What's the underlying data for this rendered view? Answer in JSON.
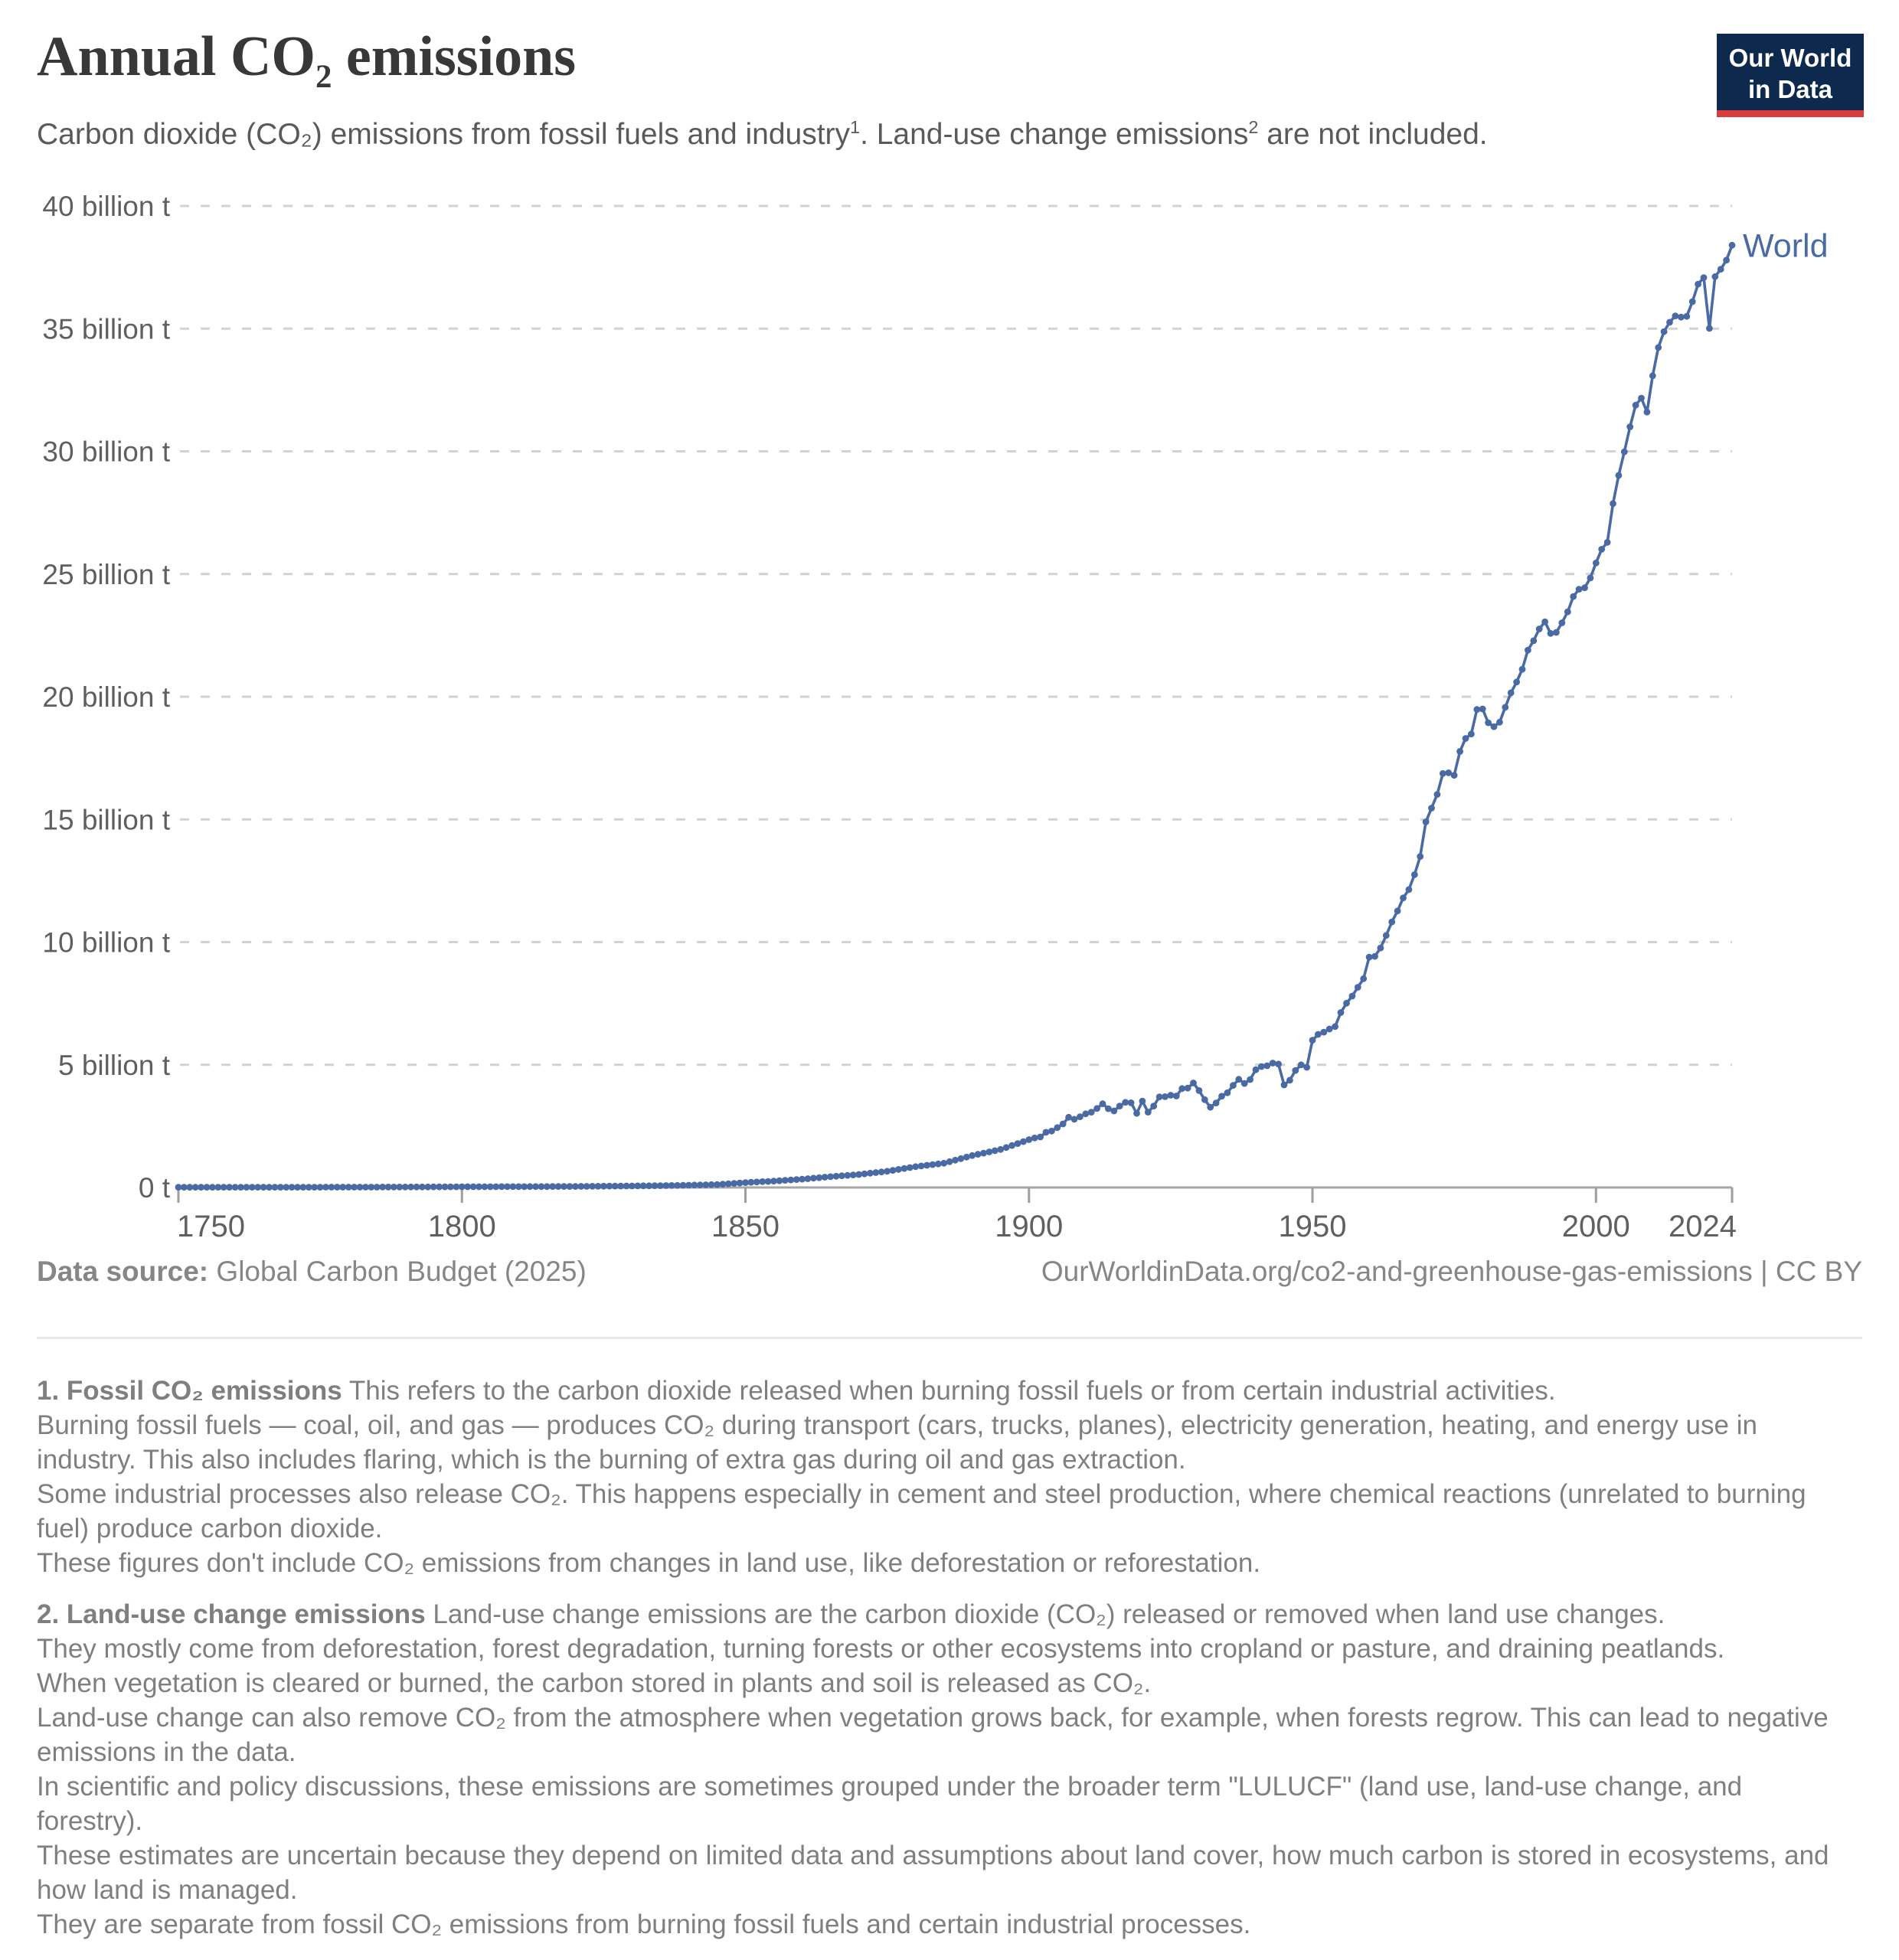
{
  "header": {
    "title": {
      "pre": "Annual CO",
      "sub": "2",
      "post": " emissions"
    },
    "subtitle": {
      "part1": "Carbon dioxide (CO₂) emissions from fossil fuels and industry",
      "ref1": "1",
      "part2": ". Land-use change emissions",
      "ref2": "2",
      "part3": " are not included."
    },
    "logo": {
      "line1": "Our World",
      "line2": "in Data",
      "bg": "#0d2a4e",
      "stripe": "#d93c3e"
    }
  },
  "chart_data": {
    "type": "line",
    "title": "Annual CO₂ emissions",
    "subtitle": "Carbon dioxide (CO₂) emissions from fossil fuels and industry. Land-use change emissions are not included.",
    "xlabel": "",
    "ylabel": "",
    "xlim": [
      1750,
      2024
    ],
    "ylim": [
      0,
      40
    ],
    "grid": "horizontal-dashed",
    "legend_position": "end-of-line",
    "x_ticks": [
      1750,
      1800,
      1850,
      1900,
      1950,
      2000,
      2024
    ],
    "x_tick_labels": [
      "1750",
      "1800",
      "1850",
      "1900",
      "1950",
      "2000",
      "2024"
    ],
    "y_ticks": [
      0,
      5,
      10,
      15,
      20,
      25,
      30,
      35,
      40
    ],
    "y_tick_labels": [
      "0 t",
      "5 billion t",
      "10 billion t",
      "15 billion t",
      "20 billion t",
      "25 billion t",
      "30 billion t",
      "35 billion t",
      "40 billion t"
    ],
    "unit": "billion tonnes CO₂ per year",
    "end_label": "World",
    "colors": {
      "line": "#4a6aa5",
      "grid": "#d2d2d2",
      "axis": "#a6a6a6",
      "tick_text": "#5f5f5f"
    },
    "series": [
      {
        "name": "World",
        "color": "#4a6aa5",
        "points": [
          [
            1750,
            0.009
          ],
          [
            1755,
            0.011
          ],
          [
            1760,
            0.011
          ],
          [
            1765,
            0.012
          ],
          [
            1770,
            0.013
          ],
          [
            1775,
            0.014
          ],
          [
            1780,
            0.015
          ],
          [
            1785,
            0.017
          ],
          [
            1790,
            0.02
          ],
          [
            1795,
            0.024
          ],
          [
            1800,
            0.03
          ],
          [
            1805,
            0.032
          ],
          [
            1810,
            0.035
          ],
          [
            1815,
            0.039
          ],
          [
            1820,
            0.045
          ],
          [
            1825,
            0.053
          ],
          [
            1830,
            0.063
          ],
          [
            1835,
            0.075
          ],
          [
            1840,
            0.093
          ],
          [
            1845,
            0.12
          ],
          [
            1850,
            0.2
          ],
          [
            1855,
            0.26
          ],
          [
            1860,
            0.34
          ],
          [
            1865,
            0.44
          ],
          [
            1870,
            0.53
          ],
          [
            1875,
            0.66
          ],
          [
            1880,
            0.85
          ],
          [
            1885,
            0.99
          ],
          [
            1890,
            1.3
          ],
          [
            1895,
            1.55
          ],
          [
            1900,
            1.95
          ],
          [
            1901,
            2.02
          ],
          [
            1902,
            2.06
          ],
          [
            1903,
            2.25
          ],
          [
            1904,
            2.3
          ],
          [
            1905,
            2.44
          ],
          [
            1906,
            2.59
          ],
          [
            1907,
            2.86
          ],
          [
            1908,
            2.78
          ],
          [
            1909,
            2.88
          ],
          [
            1910,
            3.0
          ],
          [
            1911,
            3.07
          ],
          [
            1912,
            3.22
          ],
          [
            1913,
            3.41
          ],
          [
            1914,
            3.21
          ],
          [
            1915,
            3.12
          ],
          [
            1916,
            3.32
          ],
          [
            1917,
            3.47
          ],
          [
            1918,
            3.45
          ],
          [
            1919,
            3.02
          ],
          [
            1920,
            3.52
          ],
          [
            1921,
            3.07
          ],
          [
            1922,
            3.32
          ],
          [
            1923,
            3.69
          ],
          [
            1924,
            3.7
          ],
          [
            1925,
            3.76
          ],
          [
            1926,
            3.73
          ],
          [
            1927,
            4.03
          ],
          [
            1928,
            4.05
          ],
          [
            1929,
            4.26
          ],
          [
            1930,
            3.95
          ],
          [
            1931,
            3.58
          ],
          [
            1932,
            3.27
          ],
          [
            1933,
            3.44
          ],
          [
            1934,
            3.72
          ],
          [
            1935,
            3.86
          ],
          [
            1936,
            4.16
          ],
          [
            1937,
            4.41
          ],
          [
            1938,
            4.24
          ],
          [
            1939,
            4.4
          ],
          [
            1940,
            4.8
          ],
          [
            1941,
            4.93
          ],
          [
            1942,
            4.96
          ],
          [
            1943,
            5.07
          ],
          [
            1944,
            5.03
          ],
          [
            1945,
            4.18
          ],
          [
            1946,
            4.37
          ],
          [
            1947,
            4.77
          ],
          [
            1948,
            5.0
          ],
          [
            1949,
            4.9
          ],
          [
            1950,
            6.0
          ],
          [
            1951,
            6.24
          ],
          [
            1952,
            6.33
          ],
          [
            1953,
            6.46
          ],
          [
            1954,
            6.56
          ],
          [
            1955,
            7.13
          ],
          [
            1956,
            7.51
          ],
          [
            1957,
            7.8
          ],
          [
            1958,
            8.16
          ],
          [
            1959,
            8.51
          ],
          [
            1960,
            9.39
          ],
          [
            1961,
            9.42
          ],
          [
            1962,
            9.76
          ],
          [
            1963,
            10.27
          ],
          [
            1964,
            10.82
          ],
          [
            1965,
            11.27
          ],
          [
            1966,
            11.8
          ],
          [
            1967,
            12.14
          ],
          [
            1968,
            12.75
          ],
          [
            1969,
            13.49
          ],
          [
            1970,
            14.9
          ],
          [
            1971,
            15.46
          ],
          [
            1972,
            16.02
          ],
          [
            1973,
            16.87
          ],
          [
            1974,
            16.9
          ],
          [
            1975,
            16.8
          ],
          [
            1976,
            17.77
          ],
          [
            1977,
            18.3
          ],
          [
            1978,
            18.48
          ],
          [
            1979,
            19.48
          ],
          [
            1980,
            19.5
          ],
          [
            1981,
            18.94
          ],
          [
            1982,
            18.78
          ],
          [
            1983,
            18.96
          ],
          [
            1984,
            19.57
          ],
          [
            1985,
            20.16
          ],
          [
            1986,
            20.6
          ],
          [
            1987,
            21.12
          ],
          [
            1988,
            21.9
          ],
          [
            1989,
            22.28
          ],
          [
            1990,
            22.76
          ],
          [
            1991,
            23.05
          ],
          [
            1992,
            22.58
          ],
          [
            1993,
            22.62
          ],
          [
            1994,
            23.01
          ],
          [
            1995,
            23.46
          ],
          [
            1996,
            24.08
          ],
          [
            1997,
            24.38
          ],
          [
            1998,
            24.44
          ],
          [
            1999,
            24.84
          ],
          [
            2000,
            25.45
          ],
          [
            2001,
            26.01
          ],
          [
            2002,
            26.29
          ],
          [
            2003,
            27.87
          ],
          [
            2004,
            29.02
          ],
          [
            2005,
            29.98
          ],
          [
            2006,
            31.0
          ],
          [
            2007,
            31.88
          ],
          [
            2008,
            32.17
          ],
          [
            2009,
            31.6
          ],
          [
            2010,
            33.08
          ],
          [
            2011,
            34.23
          ],
          [
            2012,
            34.88
          ],
          [
            2013,
            35.26
          ],
          [
            2014,
            35.52
          ],
          [
            2015,
            35.47
          ],
          [
            2016,
            35.5
          ],
          [
            2017,
            36.1
          ],
          [
            2018,
            36.81
          ],
          [
            2019,
            37.08
          ],
          [
            2020,
            35.01
          ],
          [
            2021,
            37.12
          ],
          [
            2022,
            37.42
          ],
          [
            2023,
            37.79
          ],
          [
            2024,
            38.4
          ]
        ]
      }
    ]
  },
  "footer": {
    "source_label": "Data source:",
    "source_value": "Global Carbon Budget (2025)",
    "link": "OurWorldinData.org/co2-and-greenhouse-gas-emissions | CC BY"
  },
  "footnotes": [
    {
      "label": "1. Fossil CO₂ emissions",
      "lines": [
        "This refers to the carbon dioxide released when burning fossil fuels or from certain industrial activities.",
        "Burning fossil fuels — coal, oil, and gas — produces CO₂ during transport (cars, trucks, planes), electricity generation, heating, and energy use in industry. This also includes flaring, which is the burning of extra gas during oil and gas extraction.",
        "Some industrial processes also release CO₂. This happens especially in cement and steel production, where chemical reactions (unrelated to burning fuel) produce carbon dioxide.",
        "These figures don't include CO₂ emissions from changes in land use, like deforestation or reforestation."
      ]
    },
    {
      "label": "2. Land-use change emissions",
      "lines": [
        "Land-use change emissions are the carbon dioxide (CO₂) released or removed when land use changes.",
        "They mostly come from deforestation, forest degradation, turning forests or other ecosystems into cropland or pasture, and draining peatlands.",
        "When vegetation is cleared or burned, the carbon stored in plants and soil is released as CO₂.",
        "Land-use change can also remove CO₂ from the atmosphere when vegetation grows back, for example, when forests regrow. This can lead to negative emissions in the data.",
        "In scientific and policy discussions, these emissions are sometimes grouped under the broader term \"LULUCF\" (land use, land-use change, and forestry).",
        "These estimates are uncertain because they depend on limited data and assumptions about land cover, how much carbon is stored in ecosystems, and how land is managed.",
        "They are separate from fossil CO₂ emissions from burning fossil fuels and certain industrial processes."
      ]
    }
  ]
}
